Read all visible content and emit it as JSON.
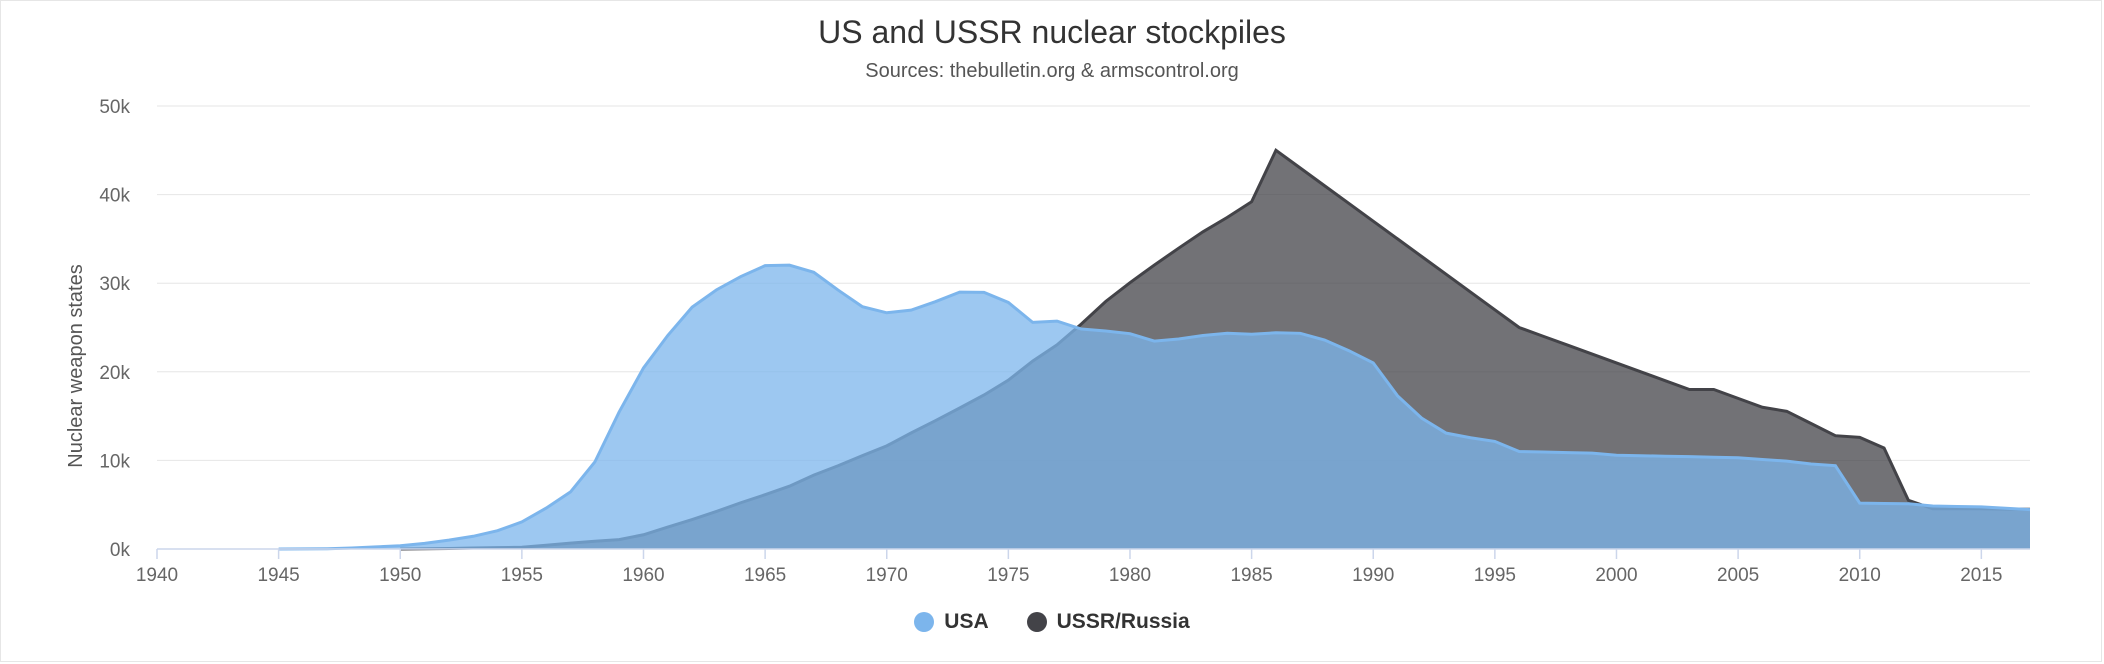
{
  "chart_data": {
    "type": "area",
    "title": "US and USSR nuclear stockpiles",
    "subtitle": "Sources: thebulletin.org & armscontrol.org",
    "ylabel": "Nuclear weapon states",
    "xlabel": "",
    "xlim": [
      1940,
      2017
    ],
    "ylim": [
      0,
      50000
    ],
    "x_ticks": [
      1940,
      1945,
      1950,
      1955,
      1960,
      1965,
      1970,
      1975,
      1980,
      1985,
      1990,
      1995,
      2000,
      2005,
      2010,
      2015
    ],
    "x_tick_labels": [
      "1940",
      "1945",
      "1950",
      "1955",
      "1960",
      "1965",
      "1970",
      "1975",
      "1980",
      "1985",
      "1990",
      "1995",
      "2000",
      "2005",
      "2010",
      "2015"
    ],
    "y_ticks": [
      0,
      10000,
      20000,
      30000,
      40000,
      50000
    ],
    "y_tick_labels": [
      "0k",
      "10k",
      "20k",
      "30k",
      "40k",
      "50k"
    ],
    "grid": true,
    "legend_position": "bottom-center",
    "series": [
      {
        "name": "USA",
        "color": "#7cb5ec",
        "x": [
          1945,
          1946,
          1947,
          1948,
          1949,
          1950,
          1951,
          1952,
          1953,
          1954,
          1955,
          1956,
          1957,
          1958,
          1959,
          1960,
          1961,
          1962,
          1963,
          1964,
          1965,
          1966,
          1967,
          1968,
          1969,
          1970,
          1971,
          1972,
          1973,
          1974,
          1975,
          1976,
          1977,
          1978,
          1979,
          1980,
          1981,
          1982,
          1983,
          1984,
          1985,
          1986,
          1987,
          1988,
          1989,
          1990,
          1991,
          1992,
          1993,
          1994,
          1995,
          1996,
          1997,
          1998,
          1999,
          2000,
          2001,
          2002,
          2003,
          2004,
          2005,
          2006,
          2007,
          2008,
          2009,
          2010,
          2011,
          2012,
          2013,
          2014,
          2015,
          2016,
          2017
        ],
        "values": [
          6,
          11,
          32,
          110,
          235,
          369,
          640,
          1005,
          1436,
          2063,
          3057,
          4618,
          6444,
          9822,
          15468,
          20434,
          24111,
          27297,
          29249,
          30751,
          31982,
          32040,
          31233,
          29224,
          27342,
          26662,
          26956,
          27912,
          28999,
          28965,
          27826,
          25579,
          25722,
          24826,
          24605,
          24304,
          23464,
          23708,
          24099,
          24357,
          24237,
          24401,
          24344,
          23586,
          22380,
          21004,
          17287,
          14747,
          13076,
          12555,
          12144,
          11009,
          10950,
          10871,
          10824,
          10577,
          10527,
          10475,
          10421,
          10358,
          10295,
          10104,
          9914,
          9595,
          9405,
          5180,
          5130,
          5100,
          4850,
          4800,
          4750,
          4600,
          4450
        ]
      },
      {
        "name": "USSR/Russia",
        "color": "#434348",
        "x": [
          1950,
          1951,
          1952,
          1953,
          1954,
          1955,
          1956,
          1957,
          1958,
          1959,
          1960,
          1961,
          1962,
          1963,
          1964,
          1965,
          1966,
          1967,
          1968,
          1969,
          1970,
          1971,
          1972,
          1973,
          1974,
          1975,
          1976,
          1977,
          1978,
          1979,
          1980,
          1981,
          1982,
          1983,
          1984,
          1985,
          1986,
          1987,
          1988,
          1989,
          1990,
          1991,
          1992,
          1993,
          1994,
          1995,
          1996,
          1997,
          1998,
          1999,
          2000,
          2001,
          2002,
          2003,
          2004,
          2005,
          2006,
          2007,
          2008,
          2009,
          2010,
          2011,
          2012,
          2013,
          2014,
          2015,
          2016,
          2017
        ],
        "values": [
          5,
          25,
          50,
          120,
          150,
          200,
          426,
          660,
          869,
          1060,
          1605,
          2471,
          3322,
          4238,
          5221,
          6129,
          7089,
          8339,
          9399,
          10538,
          11643,
          13092,
          14478,
          15915,
          17385,
          19055,
          21205,
          23044,
          25393,
          27935,
          30062,
          32049,
          33952,
          35804,
          37431,
          39197,
          45000,
          43000,
          41000,
          39000,
          37000,
          35000,
          33000,
          31000,
          29000,
          27000,
          25000,
          24000,
          23000,
          22000,
          21000,
          20000,
          19000,
          18000,
          18000,
          17000,
          16000,
          15537,
          14162,
          12787,
          12600,
          11400,
          5500,
          4550,
          4550,
          4550,
          4500,
          4490
        ]
      }
    ]
  }
}
